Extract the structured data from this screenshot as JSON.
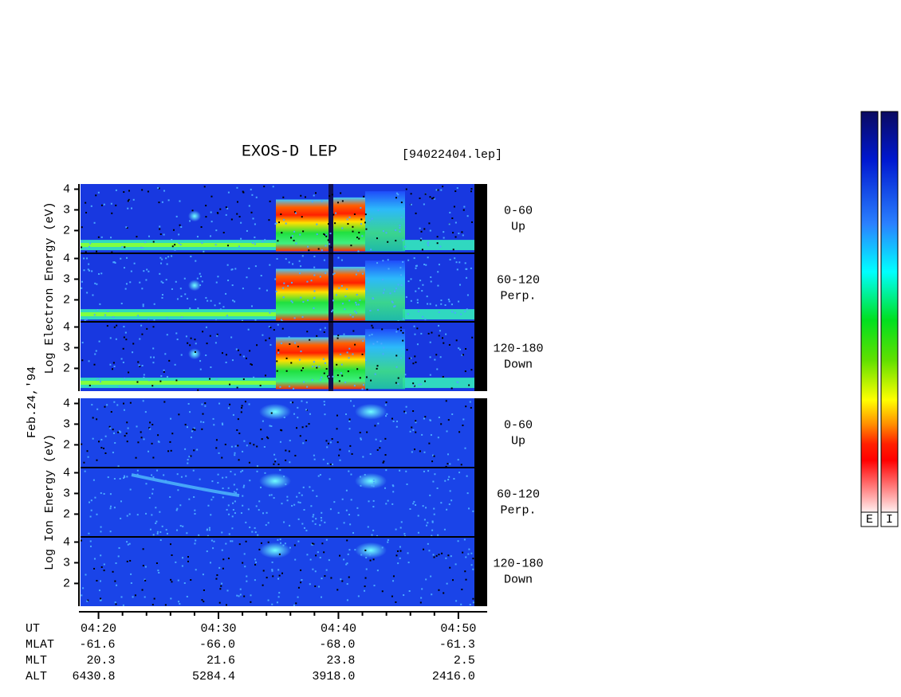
{
  "chart_data": {
    "type": "spectrogram",
    "title": "EXOS-D LEP",
    "subtitle": "[94022404.lep]",
    "date": "Feb.24,'94",
    "groups": [
      {
        "label": "Log Electron Energy (eV)",
        "species": "electron",
        "panels": [
          {
            "name": "0-60",
            "direction": "Up"
          },
          {
            "name": "60-120",
            "direction": "Perp."
          },
          {
            "name": "120-180",
            "direction": "Down"
          }
        ]
      },
      {
        "label": "Log Ion Energy (eV)",
        "species": "ion",
        "panels": [
          {
            "name": "0-60",
            "direction": "Up"
          },
          {
            "name": "60-120",
            "direction": "Perp."
          },
          {
            "name": "120-180",
            "direction": "Down"
          }
        ]
      }
    ],
    "ylim": [
      0.9,
      4.25
    ],
    "yticks": [
      2,
      3,
      4
    ],
    "xlim": [
      258.5,
      292.4
    ],
    "xticks": [
      {
        "value": 260,
        "label": "04:20"
      },
      {
        "value": 270,
        "label": "04:30"
      },
      {
        "value": 280,
        "label": "04:40"
      },
      {
        "value": 290,
        "label": "04:50"
      }
    ],
    "xminorticks": [
      262,
      264,
      266,
      268,
      272,
      274,
      276,
      278,
      282,
      284,
      286,
      288
    ],
    "ephemeris": {
      "time_label": "UT",
      "rows": [
        {
          "label": "MLAT",
          "values": [
            "-61.6",
            "-66.0",
            "-68.0",
            "-61.3"
          ]
        },
        {
          "label": "MLT",
          "values": [
            "20.3",
            "21.6",
            "23.8",
            "2.5"
          ]
        },
        {
          "label": "ALT",
          "values": [
            "6430.8",
            "5284.4",
            "3918.0",
            "2416.0"
          ]
        }
      ]
    },
    "colorbars": [
      "E",
      "I"
    ]
  }
}
